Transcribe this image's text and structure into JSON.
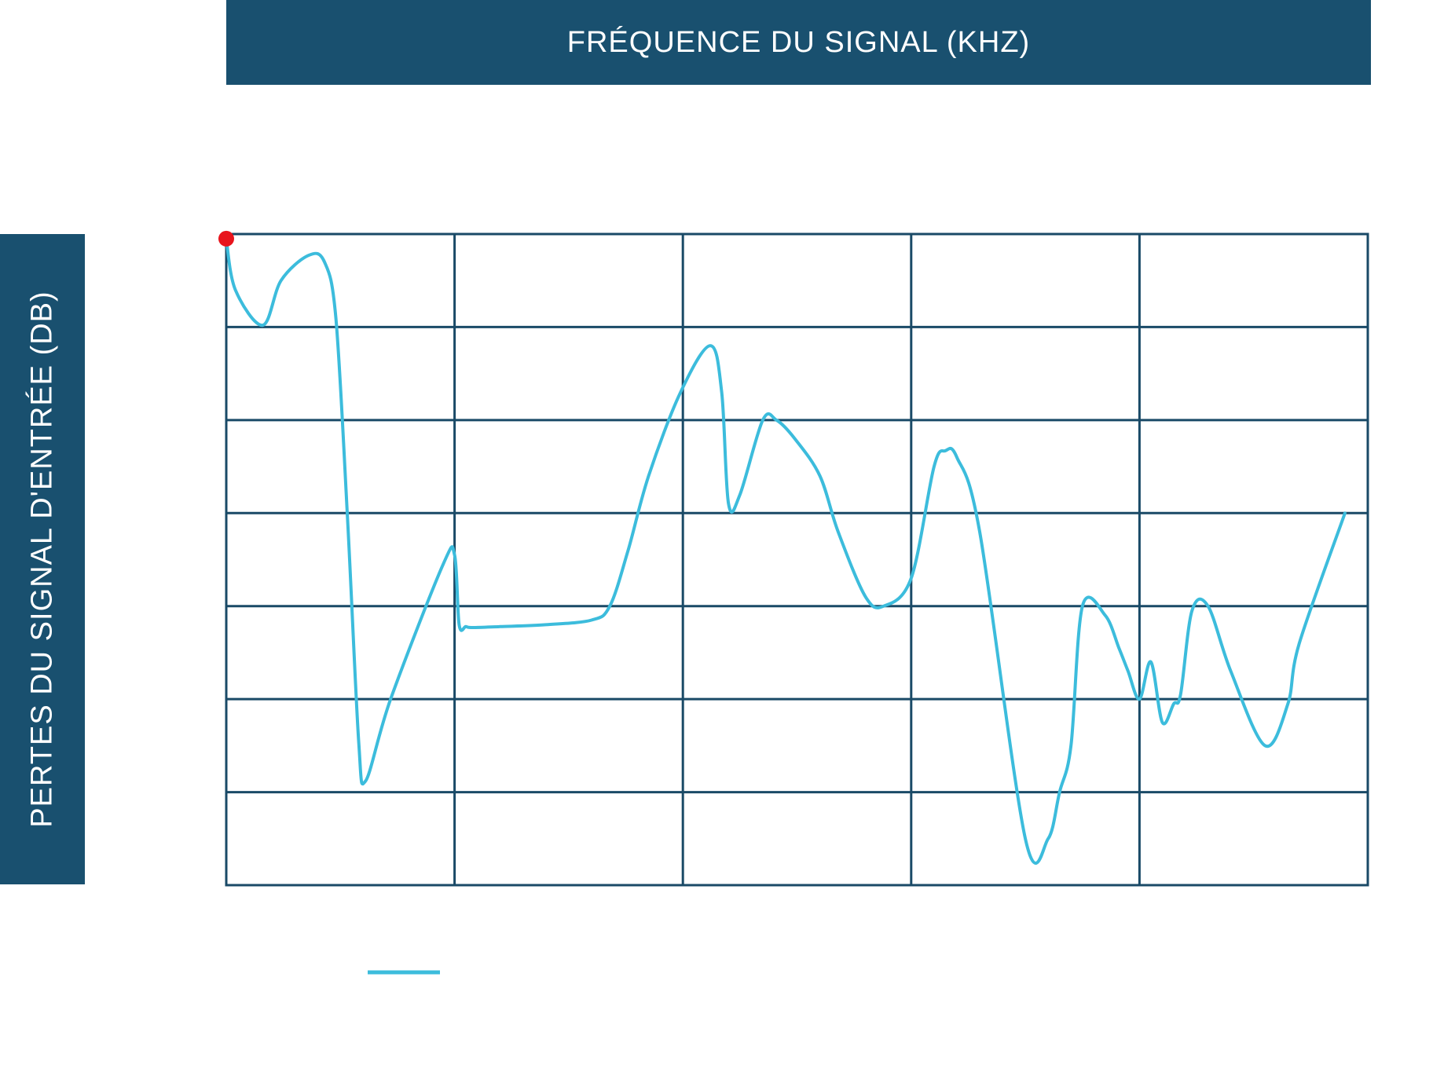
{
  "chart_data": {
    "type": "line",
    "xlabel": "FRÉQUENCE DU SIGNAL (KHZ)",
    "ylabel": "PERTES DU SIGNAL D'ENTRÉE (DB)",
    "xlim": [
      0,
      5
    ],
    "ylim": [
      0,
      7
    ],
    "grid": true,
    "legend_position": "bottom-left",
    "series": [
      {
        "color": "#3cbcdc",
        "marker_color": "#e8141c",
        "x": [
          0,
          0.04,
          0.16,
          0.24,
          0.36,
          0.43,
          0.48,
          0.53,
          0.58,
          0.61,
          0.72,
          0.95,
          1.0,
          1.02,
          1.05,
          1.08,
          1.2,
          1.4,
          1.6,
          1.68,
          1.76,
          1.85,
          1.99,
          2.12,
          2.17,
          2.2,
          2.25,
          2.35,
          2.41,
          2.49,
          2.6,
          2.68,
          2.8,
          2.88,
          3.0,
          3.1,
          3.15,
          3.2,
          3.3,
          3.5,
          3.6,
          3.65,
          3.7,
          3.75,
          3.85,
          3.91,
          3.95,
          4.0,
          4.05,
          4.1,
          4.15,
          4.18,
          4.23,
          4.3,
          4.4,
          4.55,
          4.65,
          4.7,
          4.9
        ],
        "y": [
          6.95,
          6.4,
          6.02,
          6.5,
          6.77,
          6.7,
          6.1,
          4.0,
          1.55,
          1.12,
          2.0,
          3.45,
          3.55,
          2.8,
          2.78,
          2.77,
          2.78,
          2.8,
          2.85,
          3.0,
          3.6,
          4.4,
          5.3,
          5.8,
          5.3,
          4.1,
          4.2,
          5.0,
          5.0,
          4.8,
          4.4,
          3.8,
          3.1,
          3.0,
          3.3,
          4.5,
          4.67,
          4.6,
          3.8,
          0.5,
          0.5,
          1.0,
          1.5,
          3.0,
          2.9,
          2.55,
          2.3,
          2.0,
          2.4,
          1.75,
          1.95,
          2.05,
          2.95,
          3.0,
          2.3,
          1.5,
          1.95,
          2.6,
          4.0
        ]
      }
    ]
  }
}
